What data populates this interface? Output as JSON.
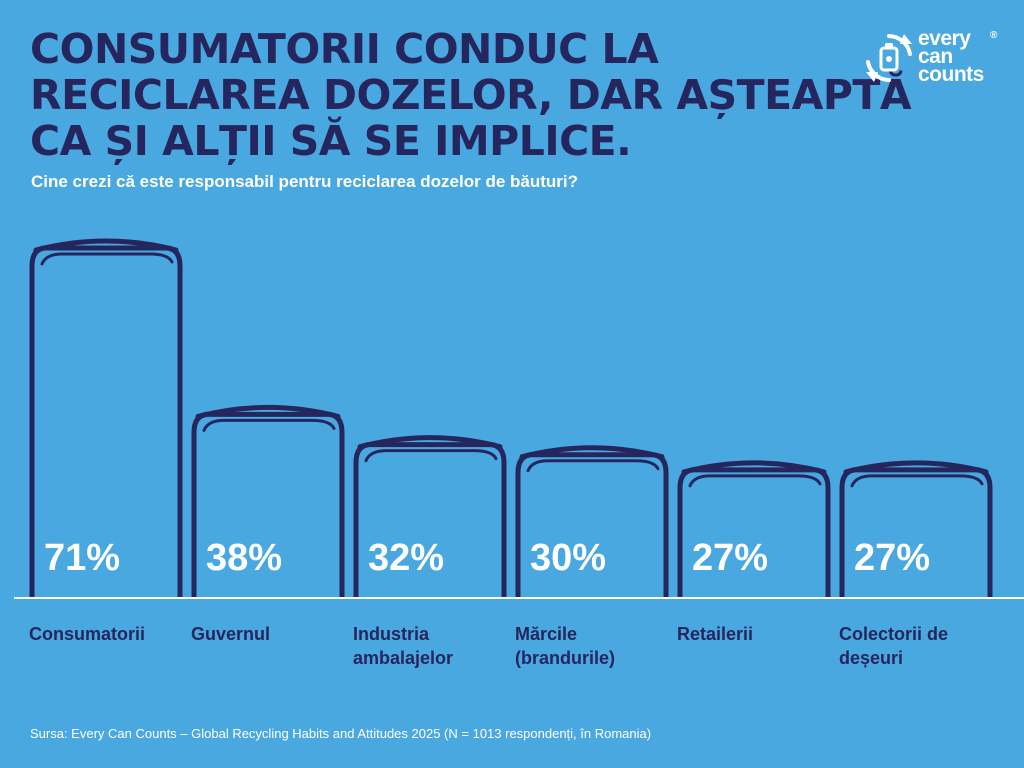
{
  "header": {
    "title_lines": [
      "CONSUMATORII CONDUC LA",
      "RECICLAREA DOZELOR, DAR AȘTEAPTĂ",
      "CA ȘI ALȚII SĂ SE IMPLICE."
    ],
    "subtitle": "Cine crezi că este responsabil pentru reciclarea dozelor de băuturi?"
  },
  "logo": {
    "line1": "every",
    "line2": "can",
    "line3": "counts",
    "reg": "®",
    "icon": "recycle-can-icon"
  },
  "colors": {
    "background": "#4aa8e0",
    "navy": "#26265e",
    "white": "#ffffff"
  },
  "chart_data": {
    "type": "bar",
    "title": "Cine crezi că este responsabil pentru reciclarea dozelor de băuturi?",
    "categories": [
      "Consumatorii",
      "Guvernul",
      "Industria ambalajelor",
      "Mărcile (brandurile)",
      "Retailerii",
      "Colectorii de deșeuri"
    ],
    "category_lines": [
      [
        "Consumatorii"
      ],
      [
        "Guvernul"
      ],
      [
        "Industria",
        "ambalajelor"
      ],
      [
        "Mărcile",
        "(brandurile)"
      ],
      [
        "Retailerii"
      ],
      [
        "Colectorii de",
        "deșeuri"
      ]
    ],
    "values": [
      71,
      38,
      32,
      30,
      27,
      27
    ],
    "value_labels": [
      "71%",
      "38%",
      "32%",
      "30%",
      "27%",
      "27%"
    ],
    "unit": "%",
    "ylim": [
      0,
      71
    ],
    "xlabel": "",
    "ylabel": ""
  },
  "footer": {
    "source": "Sursa: Every Can Counts – Global Recycling Habits and Attitudes 2025 (N = 1013 respondenți, în Romania)"
  }
}
